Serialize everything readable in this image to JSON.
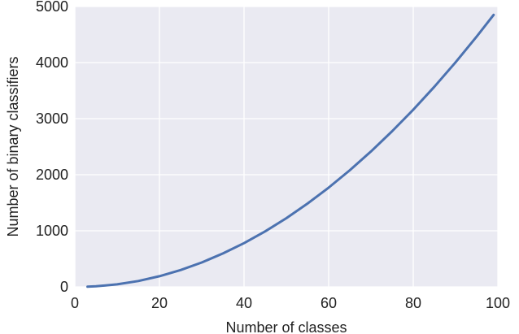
{
  "chart_data": {
    "type": "line",
    "xlabel": "Number of classes",
    "ylabel": "Number of binary classifiers",
    "xlim": [
      0,
      100
    ],
    "ylim": [
      0,
      5000
    ],
    "xticks": [
      0,
      20,
      40,
      60,
      80,
      100
    ],
    "yticks": [
      0,
      1000,
      2000,
      3000,
      4000,
      5000
    ],
    "grid": true,
    "background": "#eaeaf2",
    "grid_color": "#ffffff",
    "line_color": "#4c72b0",
    "series": [
      {
        "x": [
          3,
          5,
          10,
          15,
          20,
          25,
          30,
          35,
          40,
          45,
          50,
          55,
          60,
          65,
          70,
          75,
          80,
          85,
          90,
          95,
          99
        ],
        "y": [
          3,
          10,
          45,
          105,
          190,
          300,
          435,
          595,
          780,
          990,
          1225,
          1485,
          1770,
          2080,
          2415,
          2775,
          3160,
          3570,
          4005,
          4465,
          4851
        ]
      }
    ]
  }
}
